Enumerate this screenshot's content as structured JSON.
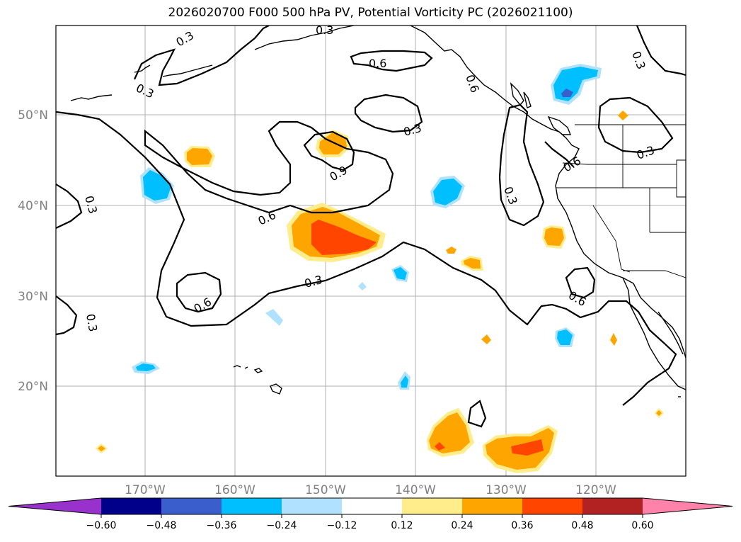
{
  "title": "2026020700 F000 500 hPa PV, Potential Vorticity PC (2026021100)",
  "latitude_labels": [
    "50°N",
    "40°N",
    "30°N",
    "20°N"
  ],
  "longitude_labels": [
    "170°W",
    "160°W",
    "150°W",
    "140°W",
    "130°W",
    "120°W"
  ],
  "contour_labels": [
    "0.3",
    "0.3",
    "0.3",
    "0.6",
    "0.6",
    "0.3",
    "0.3",
    "0.6",
    "0.3",
    "0.9",
    "0.6",
    "0.3",
    "0.3",
    "0.6",
    "0.6",
    "0.3",
    "0.3"
  ],
  "colorbar": {
    "ticks": [
      "−0.60",
      "−0.48",
      "−0.36",
      "−0.24",
      "−0.12",
      "0.12",
      "0.24",
      "0.36",
      "0.48",
      "0.60"
    ],
    "colors": [
      "#9932cc",
      "#00008b",
      "#3a5fcd",
      "#00bfff",
      "#b0e2ff",
      "#ffffff",
      "#ffec8b",
      "#ffa500",
      "#ff4500",
      "#b22222",
      "#ff82ab"
    ]
  }
}
